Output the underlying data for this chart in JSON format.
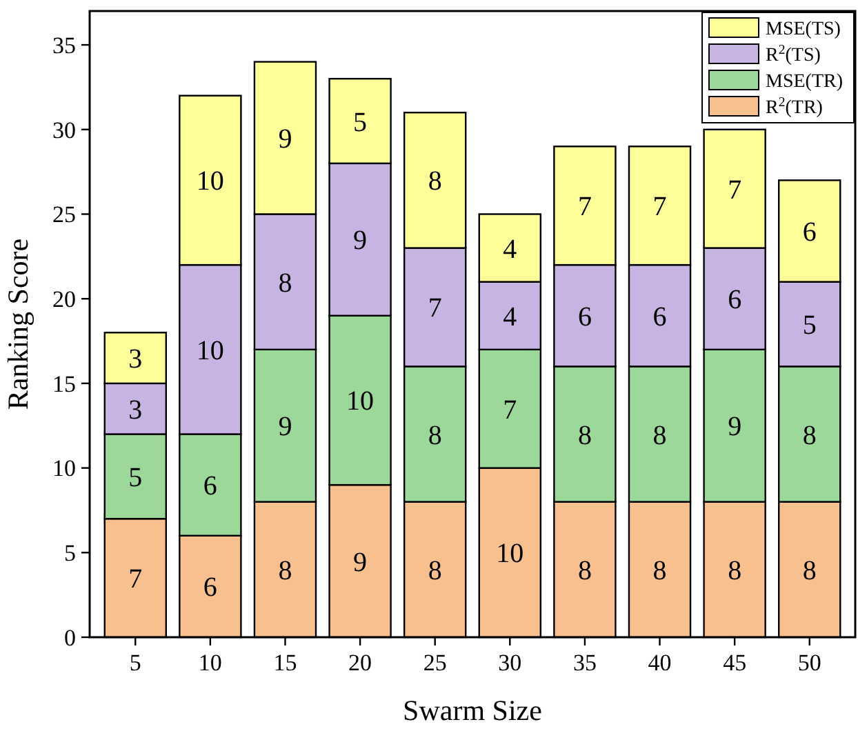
{
  "chart_data": {
    "type": "bar",
    "stacked": true,
    "xlabel": "Swarm Size",
    "ylabel": "Ranking Score",
    "categories": [
      "5",
      "10",
      "15",
      "20",
      "25",
      "30",
      "35",
      "40",
      "45",
      "50"
    ],
    "ylim": [
      0,
      37
    ],
    "yticks": [
      0,
      5,
      10,
      15,
      20,
      25,
      30,
      35
    ],
    "grid": false,
    "legend": "top right",
    "data_labels": true,
    "series": [
      {
        "name": "R$^{2}$(TR)",
        "color": "#f9c08f",
        "values": [
          7,
          6,
          8,
          9,
          8,
          10,
          8,
          8,
          8,
          8
        ]
      },
      {
        "name": "MSE(TR)",
        "color": "#9dd89b",
        "values": [
          5,
          6,
          9,
          10,
          8,
          7,
          8,
          8,
          9,
          8
        ]
      },
      {
        "name": "R$^{2}$(TS)",
        "color": "#c7b4e2",
        "values": [
          3,
          10,
          8,
          9,
          7,
          4,
          6,
          6,
          6,
          5
        ]
      },
      {
        "name": "MSE(TS)",
        "color": "#ffff99",
        "values": [
          3,
          10,
          9,
          5,
          8,
          4,
          7,
          7,
          7,
          6
        ]
      }
    ]
  }
}
